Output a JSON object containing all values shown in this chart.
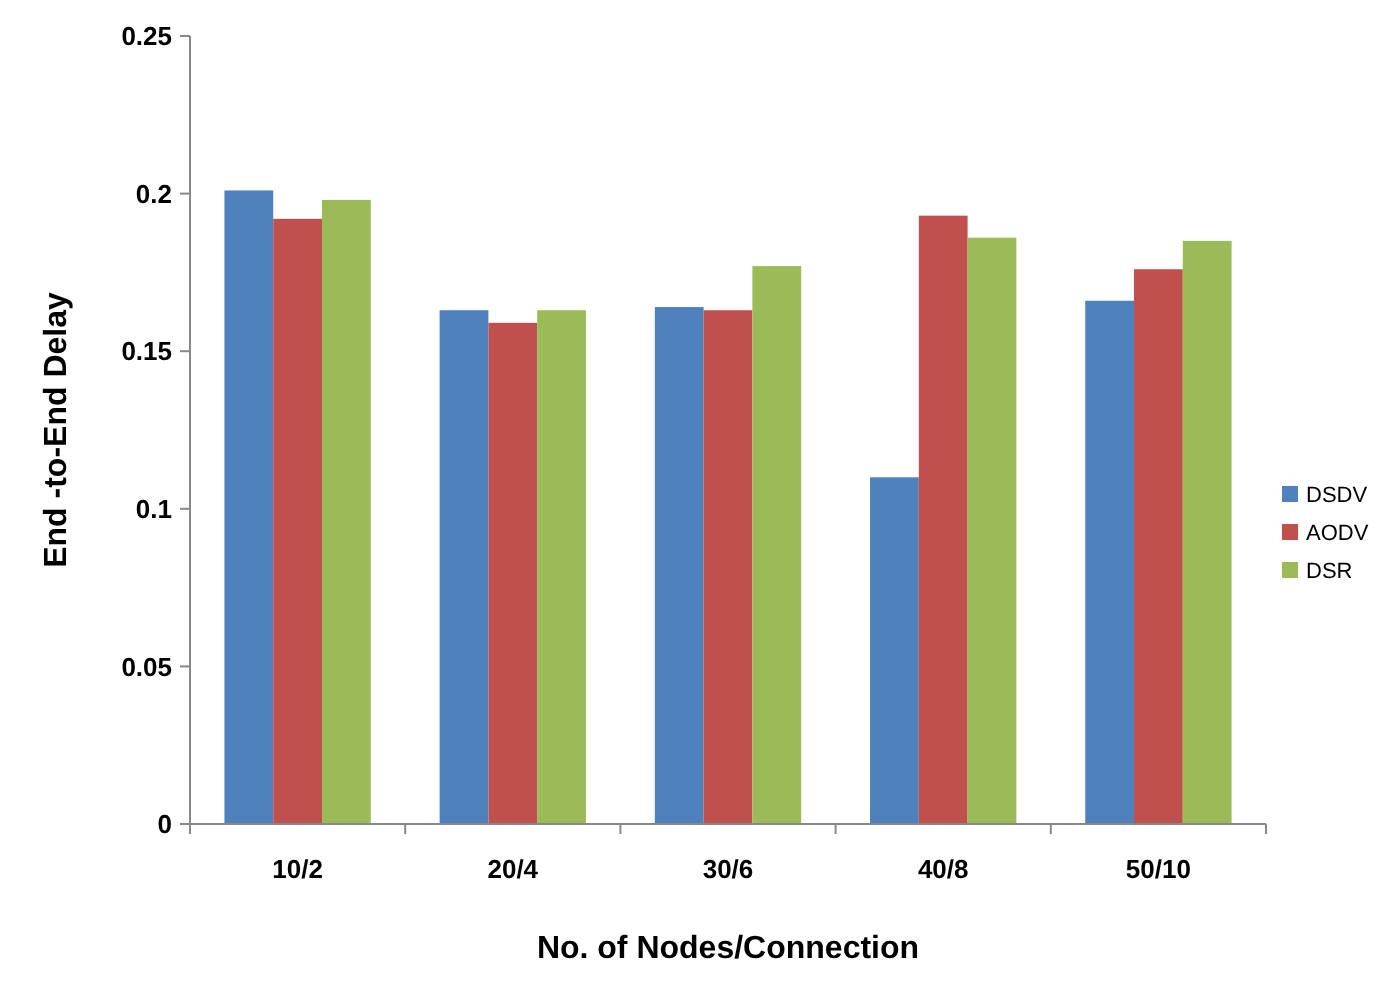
{
  "chart_data": {
    "type": "bar",
    "xlabel": "No. of Nodes/Connection",
    "ylabel": "End -to-End Delay",
    "categories": [
      "10/2",
      "20/4",
      "30/6",
      "40/8",
      "50/10"
    ],
    "series": [
      {
        "name": "DSDV",
        "color": "#4f81bd",
        "values": [
          0.201,
          0.163,
          0.164,
          0.11,
          0.166
        ]
      },
      {
        "name": "AODV",
        "color": "#c0504d",
        "values": [
          0.192,
          0.159,
          0.163,
          0.193,
          0.176
        ]
      },
      {
        "name": "DSR",
        "color": "#9bbb59",
        "values": [
          0.198,
          0.163,
          0.177,
          0.186,
          0.185
        ]
      }
    ],
    "ylim": [
      0,
      0.25
    ],
    "yticks": [
      0,
      0.05,
      {
        "value": 0.1,
        "label": "0.1"
      },
      0.15,
      {
        "value": 0.2,
        "label": "0.2"
      },
      0.25
    ],
    "legend": "right",
    "grid": false
  }
}
